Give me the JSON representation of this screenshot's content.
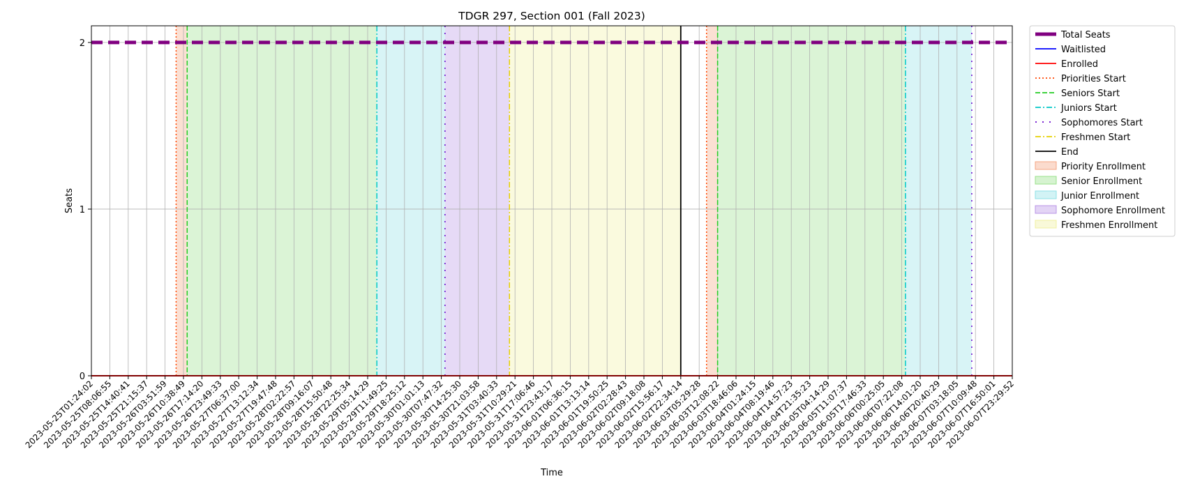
{
  "chart_data": {
    "type": "line",
    "title": "TDGR 297, Section 001 (Fall 2023)",
    "xlabel": "Time",
    "ylabel": "Seats",
    "ylim": [
      0,
      2.1
    ],
    "yticks": [
      0,
      1,
      2
    ],
    "grid": true,
    "legend_placement": "outside-right-top",
    "x_ticks": [
      "2023-05-25T01:24:02",
      "2023-05-25T08:06:55",
      "2023-05-25T14:40:41",
      "2023-05-25T21:15:37",
      "2023-05-26T03:51:59",
      "2023-05-26T10:38:49",
      "2023-05-26T17:14:20",
      "2023-05-26T23:49:33",
      "2023-05-27T06:37:00",
      "2023-05-27T13:12:34",
      "2023-05-27T19:47:48",
      "2023-05-28T02:22:57",
      "2023-05-28T09:16:07",
      "2023-05-28T15:50:48",
      "2023-05-28T22:25:34",
      "2023-05-29T05:14:29",
      "2023-05-29T11:49:25",
      "2023-05-29T18:25:12",
      "2023-05-30T01:01:13",
      "2023-05-30T07:47:32",
      "2023-05-30T14:25:30",
      "2023-05-30T21:03:58",
      "2023-05-31T03:40:33",
      "2023-05-31T10:29:21",
      "2023-05-31T17:06:46",
      "2023-05-31T23:43:17",
      "2023-06-01T06:36:15",
      "2023-06-01T13:13:14",
      "2023-06-01T19:50:25",
      "2023-06-02T02:28:43",
      "2023-06-02T09:18:08",
      "2023-06-02T15:56:17",
      "2023-06-02T22:34:14",
      "2023-06-03T05:29:28",
      "2023-06-03T12:08:22",
      "2023-06-03T18:46:06",
      "2023-06-04T01:24:15",
      "2023-06-04T08:19:46",
      "2023-06-04T14:57:23",
      "2023-06-04T21:35:23",
      "2023-06-05T04:14:29",
      "2023-06-05T11:07:37",
      "2023-06-05T17:46:33",
      "2023-06-06T00:25:05",
      "2023-06-06T07:22:08",
      "2023-06-06T14:01:20",
      "2023-06-06T20:40:29",
      "2023-06-07T03:18:05",
      "2023-06-07T10:09:48",
      "2023-06-07T16:50:01",
      "2023-06-07T23:29:52"
    ],
    "series": [
      {
        "name": "Total Seats",
        "style": "dashed",
        "color": "#800080",
        "value": 2
      },
      {
        "name": "Waitlisted",
        "style": "solid",
        "color": "#0000ff",
        "value": 0
      },
      {
        "name": "Enrolled",
        "style": "solid",
        "color": "#ff0000",
        "value": 0
      }
    ],
    "markers": [
      {
        "name": "Priorities Start",
        "color": "#ff4500",
        "dash": "dotted",
        "at": [
          4.6,
          33.4
        ]
      },
      {
        "name": "Seniors Start",
        "color": "#22cc22",
        "dash": "dashed",
        "at": [
          5.2,
          34.0
        ]
      },
      {
        "name": "Juniors Start",
        "color": "#00c8c8",
        "dash": "dashdot",
        "at": [
          15.5,
          44.2
        ]
      },
      {
        "name": "Sophomores Start",
        "color": "#6600cc",
        "dash": "loosedot",
        "at": [
          19.2,
          47.8
        ]
      },
      {
        "name": "Freshmen Start",
        "color": "#e6d000",
        "dash": "dashdot",
        "at": [
          22.7
        ]
      },
      {
        "name": "End",
        "color": "#000000",
        "dash": "solid",
        "at": [
          32.0
        ]
      }
    ],
    "regions": [
      {
        "name": "Priority Enrollment",
        "color": "#f4a582",
        "spans": [
          [
            4.6,
            5.2
          ],
          [
            33.4,
            34.0
          ]
        ]
      },
      {
        "name": "Senior Enrollment",
        "color": "#98e08a",
        "spans": [
          [
            5.2,
            15.5
          ],
          [
            34.0,
            44.2
          ]
        ]
      },
      {
        "name": "Junior Enrollment",
        "color": "#8ee0e6",
        "spans": [
          [
            15.5,
            19.2
          ],
          [
            44.2,
            47.8
          ]
        ]
      },
      {
        "name": "Sophomore Enrollment",
        "color": "#b894e6",
        "spans": [
          [
            19.2,
            22.7
          ]
        ]
      },
      {
        "name": "Freshmen Enrollment",
        "color": "#f0f0a0",
        "spans": [
          [
            22.7,
            32.0
          ]
        ]
      }
    ],
    "legend": [
      {
        "label": "Total Seats",
        "kind": "line",
        "color": "#800080",
        "dash": "thick"
      },
      {
        "label": "Waitlisted",
        "kind": "line",
        "color": "#0000ff",
        "dash": "solid"
      },
      {
        "label": "Enrolled",
        "kind": "line",
        "color": "#ff0000",
        "dash": "solid"
      },
      {
        "label": "Priorities Start",
        "kind": "line",
        "color": "#ff4500",
        "dash": "dotted"
      },
      {
        "label": "Seniors Start",
        "kind": "line",
        "color": "#22cc22",
        "dash": "dashed"
      },
      {
        "label": "Juniors Start",
        "kind": "line",
        "color": "#00c8c8",
        "dash": "dashdot"
      },
      {
        "label": "Sophomores Start",
        "kind": "line",
        "color": "#6600cc",
        "dash": "loosedot"
      },
      {
        "label": "Freshmen Start",
        "kind": "line",
        "color": "#e6d000",
        "dash": "dashdot"
      },
      {
        "label": "End",
        "kind": "line",
        "color": "#000000",
        "dash": "solid"
      },
      {
        "label": "Priority Enrollment",
        "kind": "patch",
        "color": "#f4a582"
      },
      {
        "label": "Senior Enrollment",
        "kind": "patch",
        "color": "#98e08a"
      },
      {
        "label": "Junior Enrollment",
        "kind": "patch",
        "color": "#8ee0e6"
      },
      {
        "label": "Sophomore Enrollment",
        "kind": "patch",
        "color": "#b894e6"
      },
      {
        "label": "Freshmen Enrollment",
        "kind": "patch",
        "color": "#f0f0a0"
      }
    ]
  }
}
